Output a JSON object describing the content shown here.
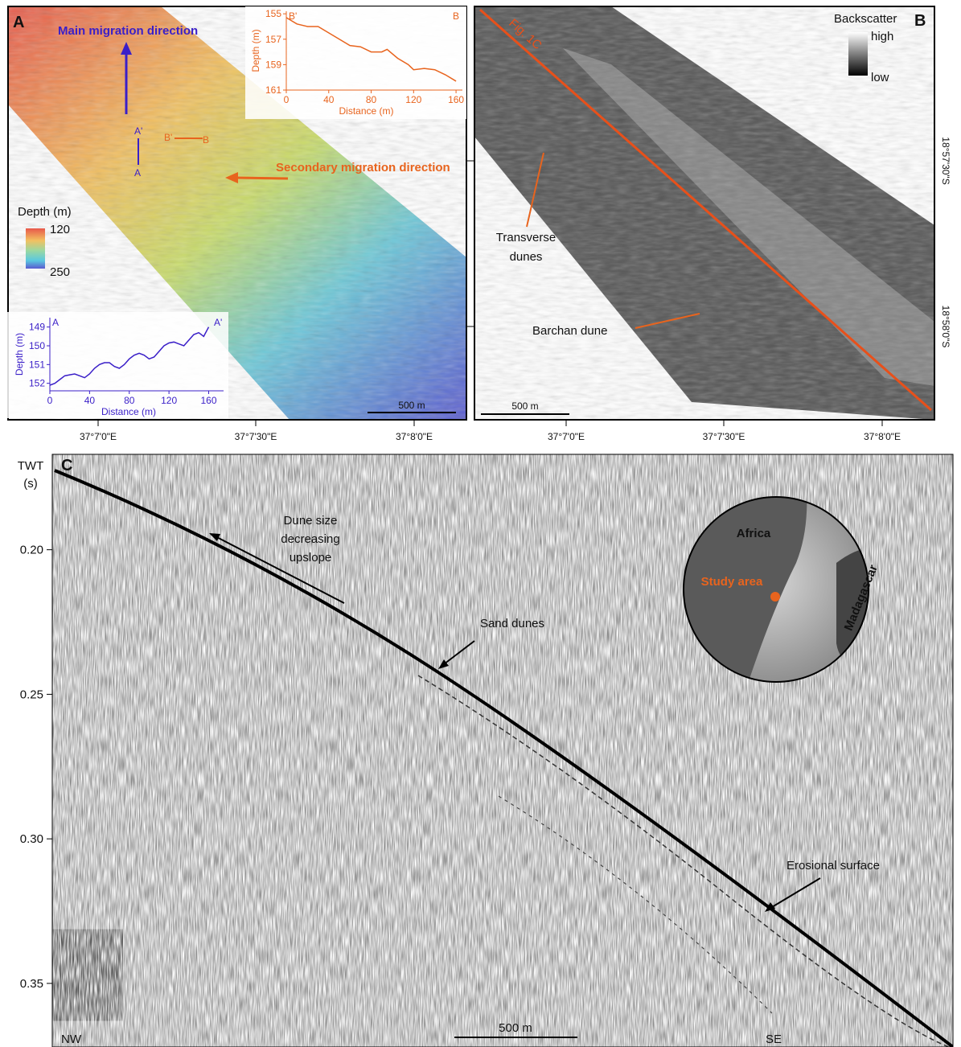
{
  "chart_data": [
    {
      "type": "line",
      "x_label": "Distance (m)",
      "y_label": "Depth (m)",
      "start_label": "A",
      "end_label": "A'",
      "x": [
        0,
        5,
        10,
        15,
        20,
        25,
        30,
        35,
        40,
        45,
        50,
        55,
        60,
        65,
        70,
        75,
        80,
        85,
        90,
        95,
        100,
        105,
        110,
        115,
        120,
        125,
        130,
        135,
        140,
        145,
        150,
        155,
        160
      ],
      "values": [
        152.1,
        152.0,
        151.8,
        151.6,
        151.55,
        151.5,
        151.6,
        151.7,
        151.5,
        151.2,
        151.0,
        150.9,
        150.9,
        151.1,
        151.2,
        151.0,
        150.7,
        150.5,
        150.4,
        150.5,
        150.7,
        150.6,
        150.3,
        150.0,
        149.85,
        149.8,
        149.9,
        150.0,
        149.7,
        149.4,
        149.3,
        149.5,
        149.0
      ],
      "color": "#3a1fc8",
      "xlim": [
        0,
        175
      ],
      "xticks": [
        0,
        40,
        80,
        120,
        160
      ],
      "ylim": [
        148.5,
        152.4
      ],
      "yticks": [
        149,
        150,
        151,
        152
      ],
      "y_inverted": true
    },
    {
      "type": "line",
      "x_label": "Distance (m)",
      "y_label": "Depth (m)",
      "start_label": "B'",
      "end_label": "B",
      "x": [
        0,
        10,
        20,
        30,
        40,
        50,
        60,
        70,
        80,
        90,
        95,
        105,
        115,
        120,
        130,
        140,
        150,
        160
      ],
      "values": [
        155.3,
        155.8,
        156.0,
        156.0,
        156.5,
        157.0,
        157.5,
        157.6,
        158.0,
        158.0,
        157.8,
        158.5,
        159.0,
        159.4,
        159.3,
        159.4,
        159.8,
        160.3
      ],
      "color": "#e8641e",
      "xlim": [
        0,
        166
      ],
      "xticks": [
        0,
        40,
        80,
        120,
        160
      ],
      "ylim": [
        154.8,
        161
      ],
      "yticks": [
        155,
        157,
        159,
        161
      ],
      "y_inverted": true
    }
  ],
  "panel_a": {
    "label": "A",
    "main_migration": "Main migration direction",
    "secondary_migration": "Secondary migration direction",
    "profile_a_start": "A'",
    "profile_a_end": "A",
    "profile_b_start": "B'",
    "profile_b_end": "B",
    "depth_title": "Depth (m)",
    "depth_min": "120",
    "depth_max": "250",
    "scale": "500 m",
    "lon_labels": [
      "37°7'0\"E",
      "37°7'30\"E",
      "37°8'0\"E"
    ]
  },
  "panel_b": {
    "label": "B",
    "legend_title": "Backscatter",
    "high": "high",
    "low": "low",
    "line_label": "Fig. 1C",
    "transverse": [
      "Transverse",
      "dunes"
    ],
    "barchan": "Barchan dune",
    "scale": "500 m",
    "lon_labels": [
      "37°7'0\"E",
      "37°7'30\"E",
      "37°8'0\"E"
    ],
    "lat_labels": [
      "18°57'30\"S",
      "18°58'0\"S"
    ]
  },
  "panel_c": {
    "label": "C",
    "y_label": [
      "TWT",
      "(s)"
    ],
    "ylim": [
      0.167,
      0.372
    ],
    "yticks": [
      {
        "value": 0.2,
        "label": "0.20"
      },
      {
        "value": 0.25,
        "label": "0.25"
      },
      {
        "value": 0.3,
        "label": "0.30"
      },
      {
        "value": 0.35,
        "label": "0.35"
      }
    ],
    "dune_size": [
      "Dune size",
      "decreasing",
      "upslope"
    ],
    "sand_dunes": "Sand dunes",
    "erosional": "Erosional surface",
    "nw": "NW",
    "se": "SE",
    "scale": "500 m",
    "africa": "Africa",
    "madagascar": "Madagascar",
    "study_area": "Study area"
  }
}
